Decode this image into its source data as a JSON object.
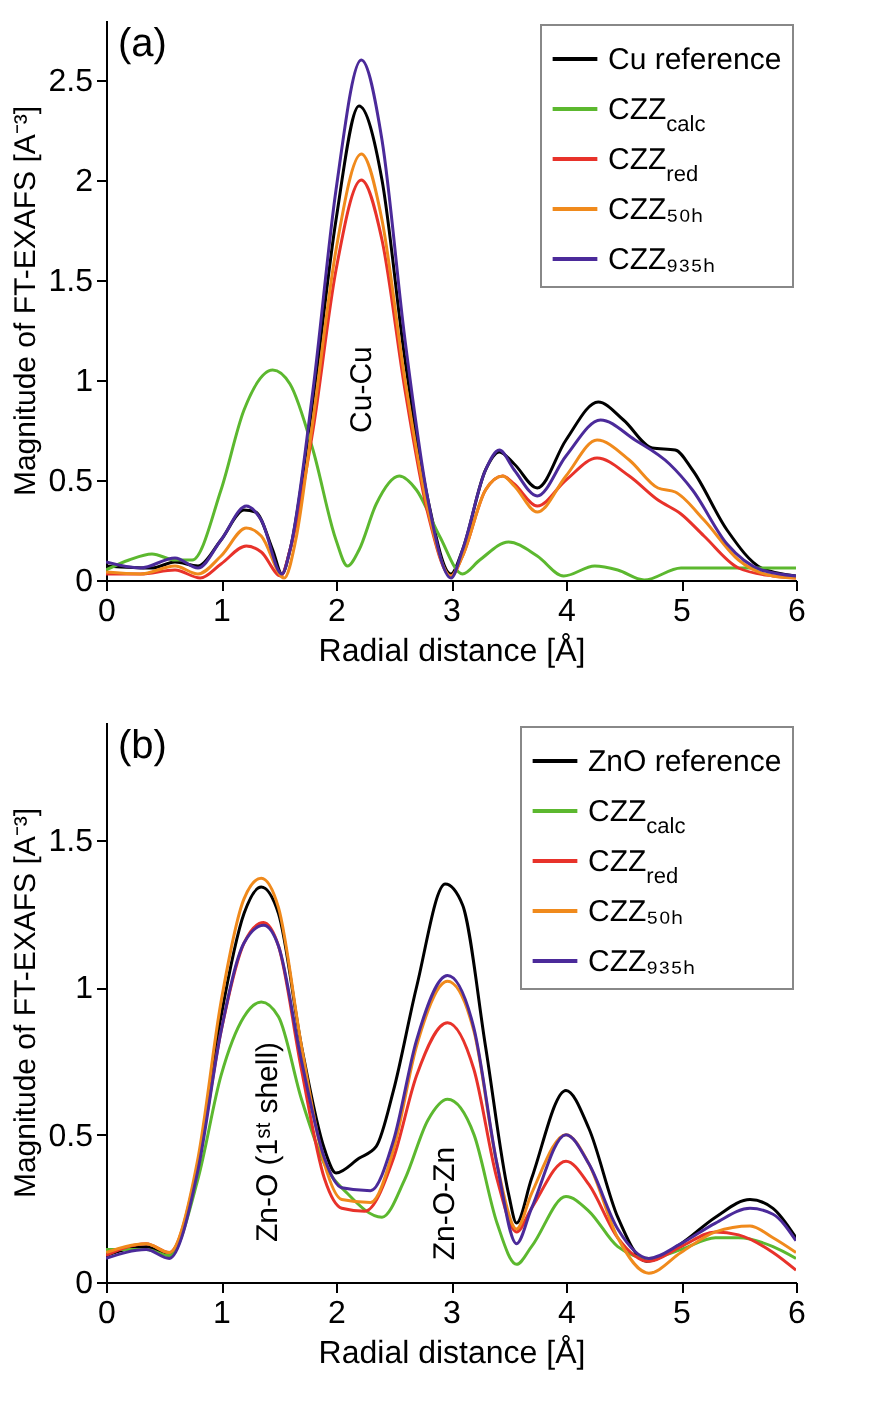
{
  "chart_data": [
    {
      "type": "line",
      "title": "(a)",
      "xlabel": "Radial distance [Å]",
      "ylabel": "Magnitude of FT-EXAFS [A⁻³]",
      "xlim": [
        0,
        6
      ],
      "ylim": [
        0,
        2.8
      ],
      "xticks": [
        0,
        1,
        2,
        3,
        4,
        5,
        6
      ],
      "yticks": [
        0,
        0.5,
        1,
        1.5,
        2,
        2.5
      ],
      "legend": "top right",
      "annotations": [
        "Cu-Cu"
      ],
      "series": [
        {
          "name": "Cu reference",
          "color": "#000000",
          "x": [
            0,
            0.4,
            0.6,
            0.8,
            1.0,
            1.2,
            1.3,
            1.45,
            1.53,
            1.6,
            1.8,
            2.0,
            2.2,
            2.4,
            2.6,
            2.8,
            3.0,
            3.1,
            3.3,
            3.42,
            3.55,
            3.75,
            4.0,
            4.28,
            4.5,
            4.75,
            4.95,
            5.1,
            5.4,
            5.7,
            6.0
          ],
          "values": [
            0.07,
            0.06,
            0.09,
            0.07,
            0.2,
            0.35,
            0.34,
            0.15,
            0.03,
            0.15,
            0.9,
            1.8,
            2.37,
            2.0,
            1.1,
            0.4,
            0.03,
            0.15,
            0.55,
            0.64,
            0.58,
            0.46,
            0.7,
            0.89,
            0.8,
            0.66,
            0.65,
            0.55,
            0.25,
            0.06,
            0.02
          ]
        },
        {
          "name": "CZZ$_{calc}$",
          "color": "#5cb82f",
          "x": [
            0,
            0.2,
            0.4,
            0.6,
            0.75,
            1.0,
            1.2,
            1.45,
            1.6,
            1.8,
            2.0,
            2.1,
            2.2,
            2.35,
            2.55,
            2.7,
            2.9,
            3.1,
            3.25,
            3.5,
            3.75,
            3.98,
            4.25,
            4.45,
            4.68,
            5.0,
            5.3,
            6.0
          ],
          "values": [
            0.05,
            0.1,
            0.13,
            0.1,
            0.1,
            0.45,
            0.85,
            1.05,
            0.98,
            0.65,
            0.2,
            0.07,
            0.15,
            0.38,
            0.52,
            0.45,
            0.22,
            0.03,
            0.1,
            0.19,
            0.12,
            0.02,
            0.07,
            0.05,
            0.0,
            0.06,
            0.06,
            0.06
          ]
        },
        {
          "name": "CZZ$_{red}$",
          "color": "#e8322a",
          "x": [
            0,
            0.3,
            0.6,
            0.82,
            1.0,
            1.22,
            1.35,
            1.52,
            1.6,
            1.8,
            2.0,
            2.22,
            2.4,
            2.6,
            2.8,
            3.0,
            3.1,
            3.3,
            3.45,
            3.55,
            3.75,
            4.0,
            4.27,
            4.55,
            4.8,
            5.0,
            5.2,
            5.5,
            5.8,
            6.0
          ],
          "values": [
            0.03,
            0.03,
            0.05,
            0.01,
            0.08,
            0.17,
            0.14,
            0.02,
            0.15,
            0.75,
            1.55,
            2.0,
            1.7,
            0.95,
            0.33,
            0.02,
            0.12,
            0.45,
            0.52,
            0.48,
            0.37,
            0.5,
            0.61,
            0.52,
            0.4,
            0.33,
            0.22,
            0.06,
            0.02,
            0.01
          ]
        },
        {
          "name": "CZZ₅₀ₕ",
          "color": "#f08a1c",
          "x": [
            0,
            0.3,
            0.6,
            0.8,
            1.0,
            1.22,
            1.35,
            1.55,
            1.65,
            1.8,
            2.0,
            2.22,
            2.4,
            2.6,
            2.8,
            3.0,
            3.1,
            3.3,
            3.45,
            3.55,
            3.75,
            4.0,
            4.27,
            4.55,
            4.8,
            4.95,
            5.2,
            5.5,
            5.8,
            6.0
          ],
          "values": [
            0.04,
            0.03,
            0.07,
            0.03,
            0.12,
            0.26,
            0.22,
            0.01,
            0.2,
            0.8,
            1.65,
            2.13,
            1.8,
            1.0,
            0.35,
            0.02,
            0.12,
            0.45,
            0.52,
            0.47,
            0.34,
            0.52,
            0.7,
            0.6,
            0.46,
            0.44,
            0.3,
            0.1,
            0.02,
            0.01
          ]
        },
        {
          "name": "CZZ₉₃₅ₕ",
          "color": "#4b2a9a",
          "x": [
            0,
            0.3,
            0.6,
            0.8,
            1.0,
            1.22,
            1.35,
            1.53,
            1.6,
            1.8,
            2.0,
            2.22,
            2.4,
            2.6,
            2.8,
            3.0,
            3.1,
            3.3,
            3.42,
            3.55,
            3.75,
            4.0,
            4.3,
            4.6,
            4.9,
            5.1,
            5.4,
            5.7,
            6.0
          ],
          "values": [
            0.09,
            0.06,
            0.11,
            0.06,
            0.2,
            0.37,
            0.3,
            0.03,
            0.15,
            0.95,
            1.95,
            2.6,
            2.2,
            1.2,
            0.4,
            0.01,
            0.15,
            0.55,
            0.65,
            0.55,
            0.42,
            0.62,
            0.8,
            0.7,
            0.58,
            0.45,
            0.18,
            0.05,
            0.02
          ]
        }
      ]
    },
    {
      "type": "line",
      "title": "(b)",
      "xlabel": "Radial distance [Å]",
      "ylabel": "Magnitude of FT-EXAFS [A⁻³]",
      "xlim": [
        0,
        6
      ],
      "ylim": [
        0,
        1.9
      ],
      "xticks": [
        0,
        1,
        2,
        3,
        4,
        5,
        6
      ],
      "yticks": [
        0,
        0.5,
        1,
        1.5
      ],
      "legend": "top right",
      "annotations": [
        "Zn-O (1ˢᵗ shell)",
        "Zn-O-Zn"
      ],
      "series": [
        {
          "name": "ZnO reference",
          "color": "#000000",
          "x": [
            0,
            0.35,
            0.55,
            0.8,
            1.0,
            1.2,
            1.35,
            1.5,
            1.7,
            1.9,
            2.0,
            2.2,
            2.35,
            2.5,
            2.7,
            2.95,
            3.1,
            3.3,
            3.5,
            3.57,
            3.7,
            4.0,
            4.2,
            4.45,
            4.7,
            5.0,
            5.3,
            5.6,
            5.8,
            6.0
          ],
          "values": [
            0.09,
            0.12,
            0.09,
            0.4,
            0.9,
            1.25,
            1.34,
            1.25,
            0.8,
            0.45,
            0.37,
            0.42,
            0.46,
            0.65,
            1.0,
            1.35,
            1.28,
            0.8,
            0.3,
            0.2,
            0.35,
            0.65,
            0.52,
            0.22,
            0.07,
            0.13,
            0.22,
            0.28,
            0.25,
            0.15
          ]
        },
        {
          "name": "CZZ$_{calc}$",
          "color": "#5cb82f",
          "x": [
            0,
            0.35,
            0.55,
            0.8,
            1.0,
            1.2,
            1.35,
            1.5,
            1.7,
            1.9,
            2.1,
            2.4,
            2.6,
            2.8,
            2.97,
            3.2,
            3.4,
            3.57,
            3.7,
            4.0,
            4.2,
            4.45,
            4.72,
            5.0,
            5.3,
            5.5,
            5.8,
            6.0
          ],
          "values": [
            0.11,
            0.11,
            0.09,
            0.35,
            0.7,
            0.9,
            0.95,
            0.9,
            0.62,
            0.4,
            0.3,
            0.22,
            0.35,
            0.55,
            0.62,
            0.5,
            0.2,
            0.06,
            0.12,
            0.29,
            0.24,
            0.12,
            0.08,
            0.11,
            0.15,
            0.15,
            0.12,
            0.08
          ]
        },
        {
          "name": "CZZ$_{red}$",
          "color": "#e8322a",
          "x": [
            0,
            0.35,
            0.55,
            0.8,
            1.0,
            1.2,
            1.37,
            1.5,
            1.7,
            1.9,
            2.05,
            2.25,
            2.5,
            2.7,
            2.97,
            3.2,
            3.4,
            3.57,
            3.7,
            4.0,
            4.2,
            4.45,
            4.72,
            5.0,
            5.3,
            5.5,
            5.8,
            6.0
          ],
          "values": [
            0.09,
            0.13,
            0.1,
            0.4,
            0.85,
            1.15,
            1.22,
            1.14,
            0.72,
            0.35,
            0.25,
            0.24,
            0.42,
            0.7,
            0.88,
            0.72,
            0.35,
            0.17,
            0.25,
            0.41,
            0.33,
            0.15,
            0.07,
            0.12,
            0.17,
            0.16,
            0.1,
            0.04
          ]
        },
        {
          "name": "CZZ₅₀ₕ",
          "color": "#f08a1c",
          "x": [
            0,
            0.35,
            0.55,
            0.8,
            1.0,
            1.2,
            1.35,
            1.5,
            1.7,
            1.9,
            2.05,
            2.3,
            2.5,
            2.7,
            2.97,
            3.2,
            3.4,
            3.57,
            3.7,
            4.0,
            4.2,
            4.45,
            4.72,
            5.0,
            5.3,
            5.6,
            5.8,
            6.0
          ],
          "values": [
            0.1,
            0.13,
            0.1,
            0.42,
            0.95,
            1.3,
            1.37,
            1.27,
            0.8,
            0.4,
            0.28,
            0.27,
            0.45,
            0.8,
            1.02,
            0.85,
            0.4,
            0.18,
            0.3,
            0.5,
            0.4,
            0.15,
            0.03,
            0.1,
            0.17,
            0.19,
            0.15,
            0.1
          ]
        },
        {
          "name": "CZZ₉₃₅ₕ",
          "color": "#4b2a9a",
          "x": [
            0,
            0.35,
            0.55,
            0.8,
            1.0,
            1.2,
            1.37,
            1.5,
            1.7,
            1.9,
            2.05,
            2.3,
            2.5,
            2.7,
            2.97,
            3.2,
            3.4,
            3.57,
            3.7,
            4.0,
            4.2,
            4.45,
            4.72,
            5.0,
            5.3,
            5.6,
            5.8,
            6.0
          ],
          "values": [
            0.08,
            0.11,
            0.08,
            0.38,
            0.85,
            1.15,
            1.21,
            1.14,
            0.75,
            0.42,
            0.32,
            0.31,
            0.48,
            0.82,
            1.04,
            0.86,
            0.4,
            0.13,
            0.25,
            0.5,
            0.4,
            0.18,
            0.08,
            0.13,
            0.2,
            0.25,
            0.23,
            0.14
          ]
        }
      ]
    }
  ]
}
